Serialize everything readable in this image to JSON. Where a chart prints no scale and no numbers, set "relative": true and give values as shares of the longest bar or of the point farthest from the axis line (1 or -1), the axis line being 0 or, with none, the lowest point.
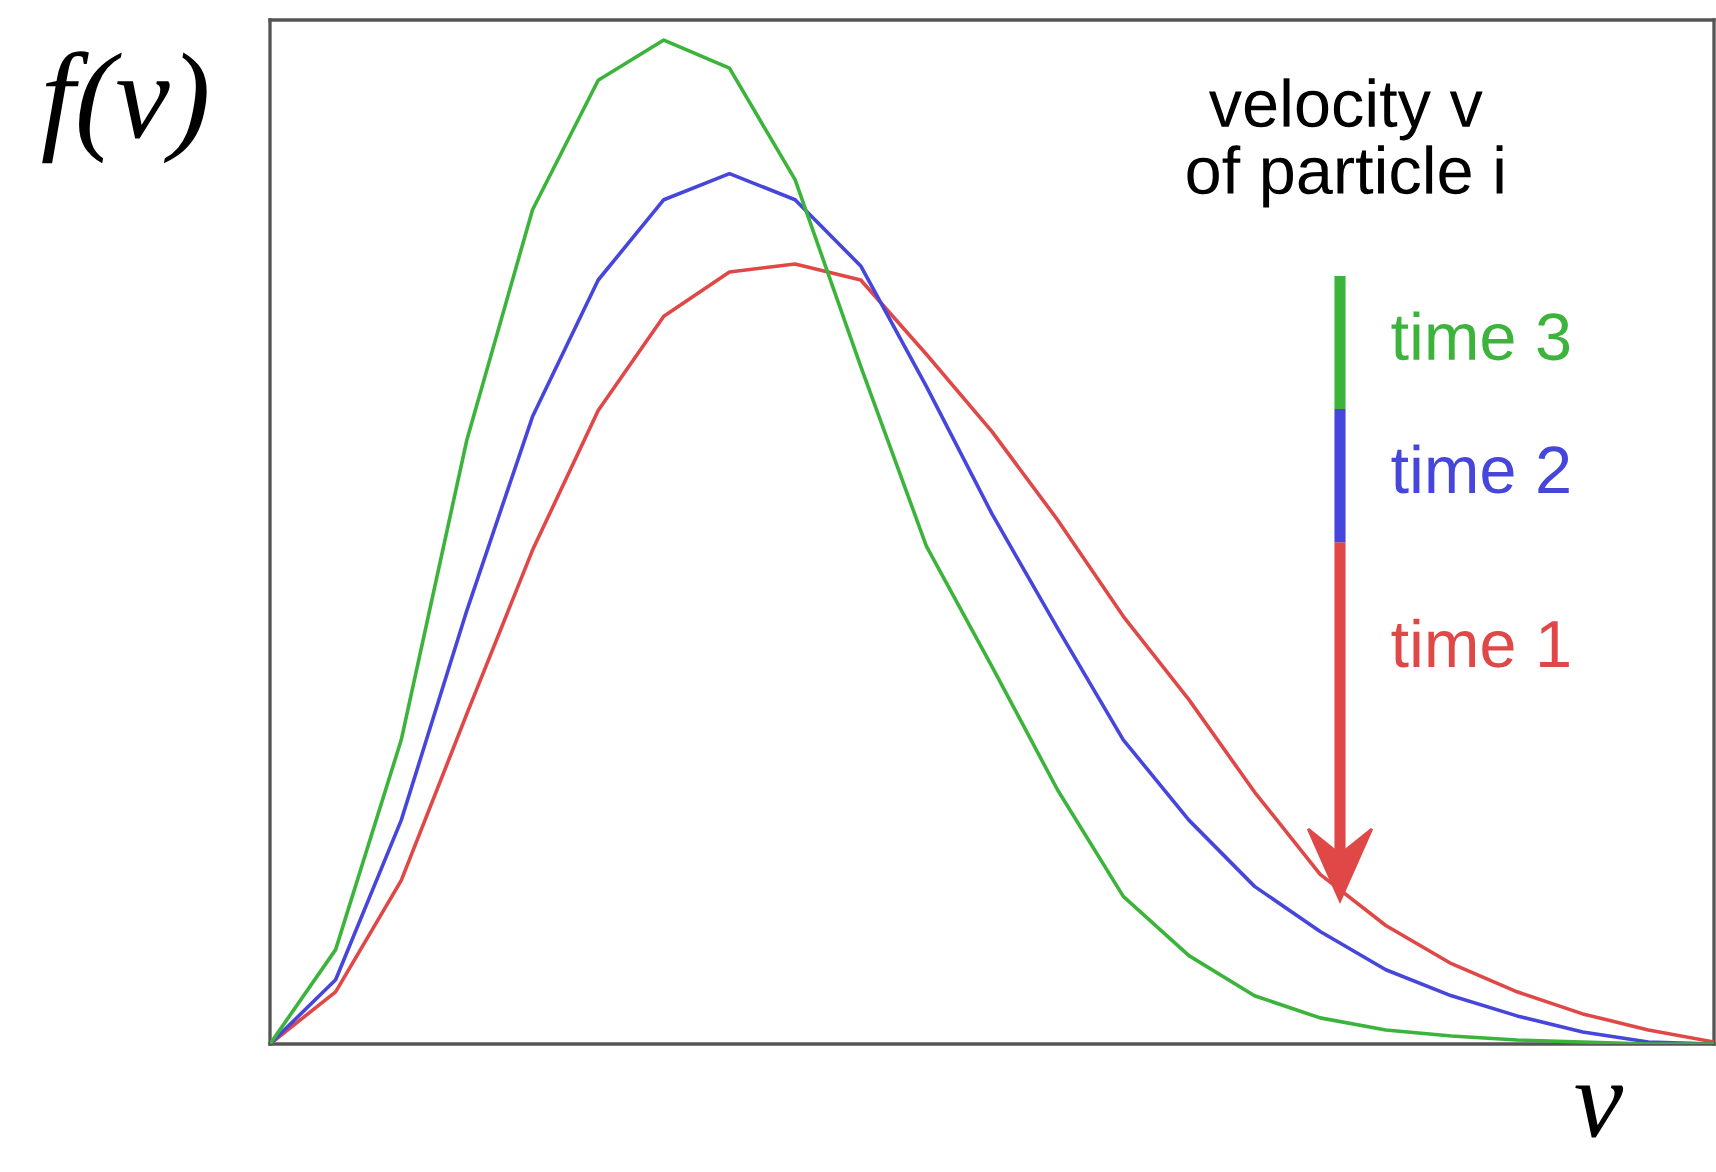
{
  "chart_data": {
    "type": "line",
    "relative": true,
    "xlabel": "v",
    "ylabel": "f(v)",
    "annotations": [
      "velocity v\nof particle i"
    ],
    "categories": [
      null,
      null,
      null,
      null,
      null,
      null,
      null,
      null,
      null,
      null,
      null,
      null,
      null,
      null,
      null,
      null,
      null,
      null,
      null,
      null,
      null,
      null,
      null
    ],
    "series": [
      {
        "name": "time 1",
        "color": "#e04848",
        "values": [
          0,
          0.052,
          0.163,
          0.329,
          0.492,
          0.631,
          0.725,
          0.769,
          0.777,
          0.761,
          0.687,
          0.61,
          0.522,
          0.426,
          0.343,
          0.251,
          0.169,
          0.118,
          0.08,
          0.052,
          0.03,
          0.014,
          0.002
        ]
      },
      {
        "name": "time 2",
        "color": "#4646dc",
        "values": [
          0,
          0.064,
          0.223,
          0.432,
          0.625,
          0.761,
          0.841,
          0.867,
          0.841,
          0.775,
          0.655,
          0.528,
          0.414,
          0.303,
          0.223,
          0.157,
          0.112,
          0.074,
          0.048,
          0.028,
          0.012,
          0.002,
          0
        ]
      },
      {
        "name": "time 3",
        "color": "#3cb43c",
        "values": [
          0,
          0.094,
          0.303,
          0.602,
          0.831,
          0.96,
          1.0,
          0.972,
          0.861,
          0.675,
          0.496,
          0.376,
          0.253,
          0.147,
          0.088,
          0.048,
          0.026,
          0.014,
          0.008,
          0.004,
          0.002,
          0,
          0
        ]
      }
    ],
    "legend": "right",
    "marker": "none",
    "line_style": "solid"
  }
}
